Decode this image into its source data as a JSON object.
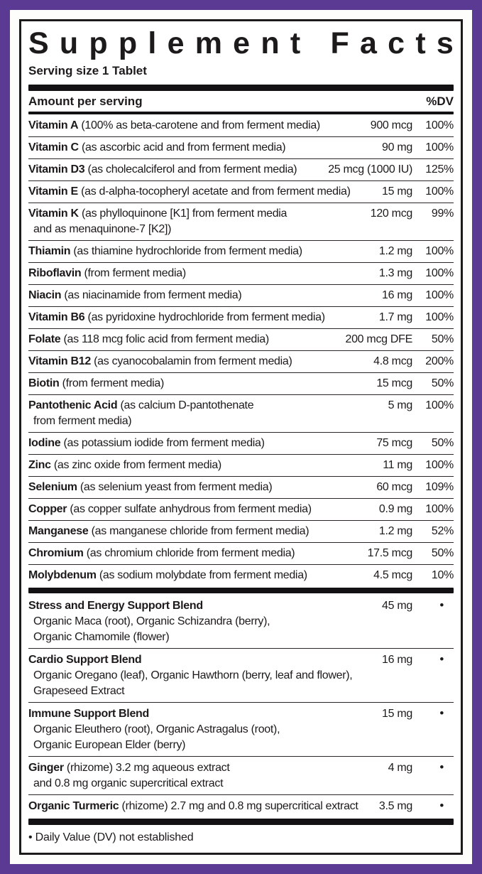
{
  "panel": {
    "title": "Supplement Facts",
    "serving_size": "Serving size 1 Tablet",
    "header": {
      "amount_label": "Amount per serving",
      "dv_label": "%DV"
    },
    "footnote": "• Daily Value (DV) not established",
    "colors": {
      "frame_purple": "#5b3a94",
      "rule_black": "#141114",
      "text": "#1d1a1c",
      "background": "#ffffff"
    }
  },
  "sections": {
    "nutrients": {
      "rows": [
        {
          "name": "Vitamin A",
          "desc": "(100% as beta-carotene and from ferment media)",
          "amount": "900 mcg",
          "dv": "100%"
        },
        {
          "name": "Vitamin C",
          "desc": "(as ascorbic acid and from ferment media)",
          "amount": "90 mg",
          "dv": "100%"
        },
        {
          "name": "Vitamin D3",
          "desc": "(as cholecalciferol and from ferment media)",
          "amount": "25 mcg (1000 IU)",
          "dv": "125%"
        },
        {
          "name": "Vitamin E",
          "desc": "(as d-alpha-tocopheryl acetate and from ferment media)",
          "amount": "15 mg",
          "dv": "100%"
        },
        {
          "name": "Vitamin K",
          "desc": "(as phylloquinone [K1] from ferment media",
          "cont": [
            "and as menaquinone-7 [K2])"
          ],
          "amount": "120 mcg",
          "dv": "99%"
        },
        {
          "name": "Thiamin",
          "desc": "(as thiamine hydrochloride from ferment media)",
          "amount": "1.2 mg",
          "dv": "100%"
        },
        {
          "name": "Riboflavin",
          "desc": "(from ferment media)",
          "amount": "1.3 mg",
          "dv": "100%"
        },
        {
          "name": "Niacin",
          "desc": "(as niacinamide from ferment media)",
          "amount": "16 mg",
          "dv": "100%"
        },
        {
          "name": "Vitamin B6",
          "desc": "(as pyridoxine hydrochloride from ferment media)",
          "amount": "1.7 mg",
          "dv": "100%"
        },
        {
          "name": "Folate",
          "desc": "(as 118 mcg folic acid from ferment media)",
          "amount": "200 mcg DFE",
          "dv": "50%"
        },
        {
          "name": "Vitamin B12",
          "desc": "(as cyanocobalamin from ferment media)",
          "amount": "4.8 mcg",
          "dv": "200%"
        },
        {
          "name": "Biotin",
          "desc": "(from ferment media)",
          "amount": "15 mcg",
          "dv": "50%"
        },
        {
          "name": "Pantothenic Acid",
          "desc": "(as calcium D-pantothenate",
          "cont": [
            "from ferment media)"
          ],
          "amount": "5 mg",
          "dv": "100%"
        },
        {
          "name": "Iodine",
          "desc": "(as potassium iodide from ferment media)",
          "amount": "75 mcg",
          "dv": "50%"
        },
        {
          "name": "Zinc",
          "desc": "(as zinc oxide from ferment media)",
          "amount": "11 mg",
          "dv": "100%"
        },
        {
          "name": "Selenium",
          "desc": "(as selenium yeast from ferment media)",
          "amount": "60 mcg",
          "dv": "109%"
        },
        {
          "name": "Copper",
          "desc": "(as copper sulfate anhydrous from ferment media)",
          "amount": "0.9 mg",
          "dv": "100%"
        },
        {
          "name": "Manganese",
          "desc": "(as manganese chloride from ferment media)",
          "amount": "1.2 mg",
          "dv": "52%"
        },
        {
          "name": "Chromium",
          "desc": "(as chromium chloride from ferment media)",
          "amount": "17.5 mcg",
          "dv": "50%"
        },
        {
          "name": "Molybdenum",
          "desc": "(as sodium molybdate from ferment media)",
          "amount": "4.5 mcg",
          "dv": "10%"
        }
      ]
    },
    "blends": {
      "rows": [
        {
          "name": "Stress and Energy Support Blend",
          "desc": "",
          "cont": [
            "Organic Maca (root), Organic Schizandra (berry),",
            "Organic Chamomile (flower)"
          ],
          "amount": "45 mg",
          "dv": "•",
          "bullet": true
        },
        {
          "name": "Cardio Support Blend",
          "desc": "",
          "cont": [
            "Organic Oregano (leaf), Organic Hawthorn (berry, leaf and flower),",
            "Grapeseed Extract"
          ],
          "amount": "16 mg",
          "dv": "•",
          "bullet": true
        },
        {
          "name": "Immune Support Blend",
          "desc": "",
          "cont": [
            "Organic Eleuthero (root), Organic Astragalus (root),",
            "Organic European Elder (berry)"
          ],
          "amount": "15 mg",
          "dv": "•",
          "bullet": true
        },
        {
          "name": "Ginger",
          "desc": "(rhizome) 3.2 mg aqueous extract",
          "cont": [
            "and 0.8 mg organic supercritical extract"
          ],
          "amount": "4 mg",
          "dv": "•",
          "bullet": true
        },
        {
          "name": "Organic Turmeric",
          "desc": "(rhizome) 2.7 mg and 0.8 mg supercritical extract",
          "amount": "3.5 mg",
          "dv": "•",
          "bullet": true
        }
      ]
    }
  }
}
